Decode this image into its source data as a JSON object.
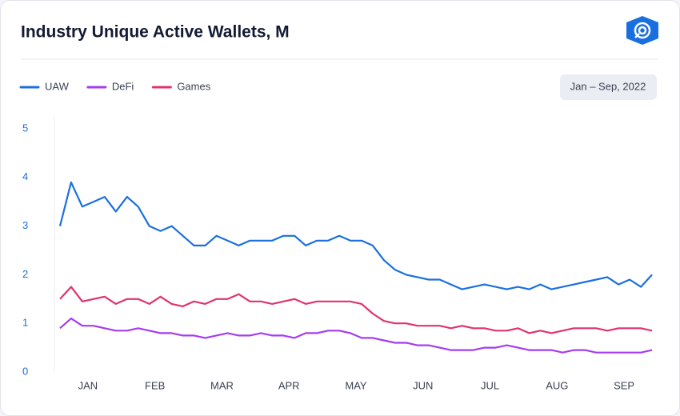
{
  "chart_data": {
    "type": "line",
    "title": "Industry Unique Active Wallets, M",
    "date_range": "Jan – Sep, 2022",
    "categories": [
      null,
      null,
      null,
      "JAN",
      null,
      null,
      null,
      null,
      null,
      "FEB",
      null,
      null,
      null,
      null,
      null,
      "MAR",
      null,
      null,
      null,
      null,
      null,
      "APR",
      null,
      null,
      null,
      null,
      null,
      "MAY",
      null,
      null,
      null,
      null,
      null,
      "JUN",
      null,
      null,
      null,
      null,
      null,
      "JUL",
      null,
      null,
      null,
      null,
      null,
      "AUG",
      null,
      null,
      null,
      null,
      null,
      "SEP",
      null,
      null
    ],
    "series": [
      {
        "name": "UAW",
        "color": "#1a6fe0",
        "values": [
          3.0,
          3.9,
          3.4,
          3.5,
          3.6,
          3.3,
          3.6,
          3.4,
          3.0,
          2.9,
          3.0,
          2.8,
          2.6,
          2.6,
          2.8,
          2.7,
          2.6,
          2.7,
          2.7,
          2.7,
          2.8,
          2.8,
          2.6,
          2.7,
          2.7,
          2.8,
          2.7,
          2.7,
          2.6,
          2.3,
          2.1,
          2.0,
          1.95,
          1.9,
          1.9,
          1.8,
          1.7,
          1.75,
          1.8,
          1.75,
          1.7,
          1.75,
          1.7,
          1.8,
          1.7,
          1.75,
          1.8,
          1.85,
          1.9,
          1.95,
          1.8,
          1.9,
          1.75,
          2.0
        ]
      },
      {
        "name": "DeFi",
        "color": "#a63bef",
        "values": [
          0.9,
          1.1,
          0.95,
          0.95,
          0.9,
          0.85,
          0.85,
          0.9,
          0.85,
          0.8,
          0.8,
          0.75,
          0.75,
          0.7,
          0.75,
          0.8,
          0.75,
          0.75,
          0.8,
          0.75,
          0.75,
          0.7,
          0.8,
          0.8,
          0.85,
          0.85,
          0.8,
          0.7,
          0.7,
          0.65,
          0.6,
          0.6,
          0.55,
          0.55,
          0.5,
          0.45,
          0.45,
          0.45,
          0.5,
          0.5,
          0.55,
          0.5,
          0.45,
          0.45,
          0.45,
          0.4,
          0.45,
          0.45,
          0.4,
          0.4,
          0.4,
          0.4,
          0.4,
          0.45
        ]
      },
      {
        "name": "Games",
        "color": "#e0336b",
        "values": [
          1.5,
          1.75,
          1.45,
          1.5,
          1.55,
          1.4,
          1.5,
          1.5,
          1.4,
          1.55,
          1.4,
          1.35,
          1.45,
          1.4,
          1.5,
          1.5,
          1.6,
          1.45,
          1.45,
          1.4,
          1.45,
          1.5,
          1.4,
          1.45,
          1.45,
          1.45,
          1.45,
          1.4,
          1.2,
          1.05,
          1.0,
          1.0,
          0.95,
          0.95,
          0.95,
          0.9,
          0.95,
          0.9,
          0.9,
          0.85,
          0.85,
          0.9,
          0.8,
          0.85,
          0.8,
          0.85,
          0.9,
          0.9,
          0.9,
          0.85,
          0.9,
          0.9,
          0.9,
          0.85
        ]
      }
    ],
    "ylim": [
      0,
      5
    ],
    "yticks": [
      0,
      1,
      2,
      3,
      4,
      5
    ]
  }
}
